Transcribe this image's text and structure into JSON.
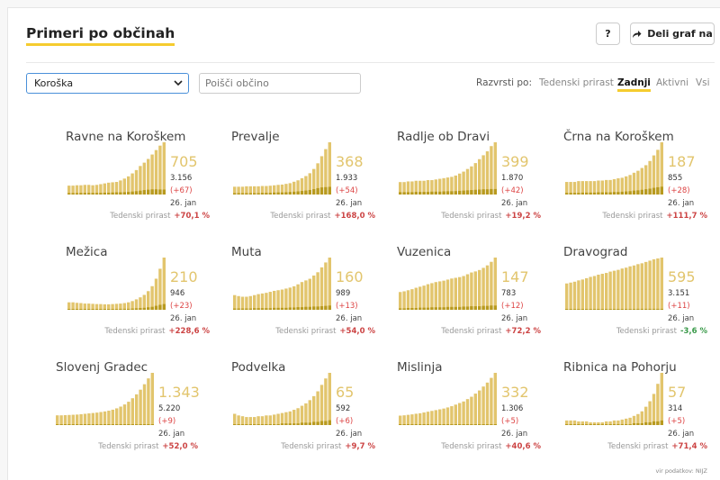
{
  "header": {
    "title": "Primeri po občinah",
    "help_label": "?",
    "share_label": "Deli graf na"
  },
  "filters": {
    "region_selected": "Koroška",
    "search_placeholder": "Poišči občino"
  },
  "sort": {
    "label": "Razvrsti po:",
    "options": [
      "Tedenski prirast",
      "Zadnji",
      "Aktivni",
      "Vsi"
    ],
    "active": "Zadnji"
  },
  "tiles": [
    {
      "name": "Ravne na Koroškem",
      "active": "705",
      "total": "3.156",
      "increase": "(+67)",
      "date": "26. jan",
      "growth_label": "Tedenski prirast",
      "growth": "+70,1 %",
      "dir": "up"
    },
    {
      "name": "Prevalje",
      "active": "368",
      "total": "1.933",
      "increase": "(+54)",
      "date": "26. jan",
      "growth_label": "Tedenski prirast",
      "growth": "+168,0 %",
      "dir": "up"
    },
    {
      "name": "Radlje ob Dravi",
      "active": "399",
      "total": "1.870",
      "increase": "(+42)",
      "date": "26. jan",
      "growth_label": "Tedenski prirast",
      "growth": "+19,2 %",
      "dir": "up"
    },
    {
      "name": "Črna na Koroškem",
      "active": "187",
      "total": "855",
      "increase": "(+28)",
      "date": "26. jan",
      "growth_label": "Tedenski prirast",
      "growth": "+111,7 %",
      "dir": "up"
    },
    {
      "name": "Mežica",
      "active": "210",
      "total": "946",
      "increase": "(+23)",
      "date": "26. jan",
      "growth_label": "Tedenski prirast",
      "growth": "+228,6 %",
      "dir": "up"
    },
    {
      "name": "Muta",
      "active": "160",
      "total": "989",
      "increase": "(+13)",
      "date": "26. jan",
      "growth_label": "Tedenski prirast",
      "growth": "+54,0 %",
      "dir": "up"
    },
    {
      "name": "Vuzenica",
      "active": "147",
      "total": "783",
      "increase": "(+12)",
      "date": "26. jan",
      "growth_label": "Tedenski prirast",
      "growth": "+72,2 %",
      "dir": "up"
    },
    {
      "name": "Dravograd",
      "active": "595",
      "total": "3.151",
      "increase": "(+11)",
      "date": "26. jan",
      "growth_label": "Tedenski prirast",
      "growth": "-3,6 %",
      "dir": "down"
    },
    {
      "name": "Slovenj Gradec",
      "active": "1.343",
      "total": "5.220",
      "increase": "(+9)",
      "date": "26. jan",
      "growth_label": "Tedenski prirast",
      "growth": "+52,0 %",
      "dir": "up"
    },
    {
      "name": "Podvelka",
      "active": "65",
      "total": "592",
      "increase": "(+6)",
      "date": "26. jan",
      "growth_label": "Tedenski prirast",
      "growth": "+9,7 %",
      "dir": "up"
    },
    {
      "name": "Mislinja",
      "active": "332",
      "total": "1.306",
      "increase": "(+5)",
      "date": "26. jan",
      "growth_label": "Tedenski prirast",
      "growth": "+40,6 %",
      "dir": "up"
    },
    {
      "name": "Ribnica na Pohorju",
      "active": "57",
      "total": "314",
      "increase": "(+5)",
      "date": "26. jan",
      "growth_label": "Tedenski prirast",
      "growth": "+71,4 %",
      "dir": "up"
    }
  ],
  "source": "vir podatkov: NIJZ",
  "colors": {
    "bar": "#e2c56d",
    "bar_dark": "#b89a1f",
    "accent": "#f5cc2f",
    "up": "#cc4444",
    "down": "#3a9a4a"
  },
  "chart_data": {
    "type": "bar",
    "series": [
      {
        "name": "Ravne na Koroškem",
        "values": [
          120,
          120,
          125,
          125,
          130,
          130,
          125,
          130,
          140,
          150,
          160,
          165,
          170,
          190,
          215,
          245,
          285,
          330,
          385,
          430,
          480,
          540,
          600,
          660,
          705
        ],
        "recent": [
          20,
          20,
          20,
          22,
          22,
          22,
          22,
          22,
          22,
          25,
          25,
          28,
          30,
          30,
          32,
          35,
          40,
          45,
          52,
          60,
          65,
          70,
          70,
          68,
          67
        ]
      },
      {
        "name": "Prevalje",
        "values": [
          55,
          55,
          55,
          58,
          58,
          58,
          58,
          60,
          60,
          62,
          65,
          68,
          70,
          75,
          80,
          90,
          100,
          115,
          130,
          150,
          180,
          220,
          270,
          320,
          368
        ],
        "recent": [
          10,
          10,
          10,
          10,
          10,
          10,
          10,
          12,
          12,
          12,
          14,
          15,
          15,
          16,
          18,
          20,
          22,
          25,
          28,
          32,
          38,
          45,
          50,
          52,
          54
        ]
      },
      {
        "name": "Radlje ob Dravi",
        "values": [
          95,
          95,
          100,
          100,
          105,
          105,
          105,
          110,
          110,
          115,
          120,
          125,
          130,
          135,
          145,
          160,
          175,
          195,
          215,
          240,
          270,
          300,
          330,
          370,
          399
        ],
        "recent": [
          18,
          18,
          18,
          18,
          20,
          20,
          20,
          20,
          22,
          22,
          22,
          24,
          25,
          25,
          26,
          28,
          30,
          32,
          34,
          36,
          38,
          40,
          40,
          42,
          42
        ]
      },
      {
        "name": "Črna na Koroškem",
        "values": [
          45,
          45,
          45,
          48,
          48,
          48,
          48,
          48,
          50,
          50,
          52,
          52,
          55,
          58,
          60,
          65,
          70,
          78,
          85,
          95,
          105,
          120,
          140,
          160,
          187
        ],
        "recent": [
          6,
          6,
          6,
          6,
          7,
          7,
          7,
          7,
          8,
          8,
          8,
          8,
          9,
          9,
          10,
          11,
          12,
          14,
          15,
          17,
          19,
          21,
          24,
          26,
          28
        ]
      },
      {
        "name": "Mežica",
        "values": [
          30,
          30,
          28,
          27,
          25,
          25,
          24,
          23,
          23,
          22,
          22,
          23,
          24,
          25,
          27,
          30,
          35,
          42,
          50,
          60,
          75,
          95,
          125,
          165,
          210
        ],
        "recent": [
          3,
          3,
          3,
          3,
          3,
          3,
          3,
          3,
          3,
          3,
          3,
          3,
          3,
          4,
          4,
          4,
          5,
          6,
          7,
          8,
          10,
          12,
          16,
          20,
          23
        ]
      },
      {
        "name": "Muta",
        "values": [
          45,
          42,
          40,
          40,
          42,
          45,
          48,
          50,
          52,
          55,
          58,
          60,
          62,
          65,
          68,
          72,
          78,
          85,
          90,
          95,
          105,
          115,
          130,
          145,
          160
        ],
        "recent": [
          4,
          4,
          4,
          4,
          4,
          5,
          5,
          5,
          5,
          5,
          6,
          6,
          6,
          6,
          7,
          7,
          8,
          8,
          9,
          9,
          10,
          10,
          11,
          12,
          13
        ]
      },
      {
        "name": "Vuzenica",
        "values": [
          50,
          52,
          55,
          58,
          62,
          65,
          68,
          72,
          75,
          78,
          80,
          82,
          85,
          88,
          90,
          92,
          95,
          100,
          105,
          108,
          112,
          118,
          125,
          135,
          147
        ],
        "recent": [
          4,
          4,
          5,
          5,
          5,
          6,
          6,
          6,
          7,
          7,
          7,
          7,
          8,
          8,
          8,
          8,
          9,
          9,
          10,
          10,
          10,
          11,
          11,
          12,
          12
        ]
      },
      {
        "name": "Dravograd",
        "values": [
          300,
          310,
          320,
          335,
          345,
          360,
          375,
          385,
          400,
          410,
          420,
          435,
          445,
          455,
          470,
          480,
          495,
          505,
          520,
          530,
          545,
          560,
          575,
          585,
          595
        ],
        "recent": [
          8,
          8,
          8,
          8,
          8,
          9,
          9,
          9,
          9,
          9,
          9,
          10,
          10,
          10,
          10,
          10,
          10,
          10,
          11,
          11,
          11,
          11,
          11,
          11,
          11
        ]
      },
      {
        "name": "Slovenj Gradec",
        "values": [
          250,
          250,
          255,
          260,
          265,
          270,
          280,
          290,
          300,
          310,
          320,
          335,
          350,
          370,
          395,
          430,
          475,
          530,
          600,
          690,
          790,
          910,
          1050,
          1200,
          1343
        ],
        "recent": [
          2,
          2,
          2,
          2,
          2,
          3,
          3,
          3,
          3,
          3,
          3,
          4,
          4,
          4,
          4,
          5,
          5,
          5,
          6,
          6,
          7,
          7,
          8,
          8,
          9
        ]
      },
      {
        "name": "Podvelka",
        "values": [
          14,
          12,
          11,
          10,
          10,
          10,
          11,
          11,
          12,
          12,
          13,
          14,
          15,
          16,
          17,
          19,
          21,
          24,
          27,
          31,
          36,
          42,
          50,
          58,
          65
        ],
        "recent": [
          1,
          1,
          1,
          1,
          1,
          1,
          1,
          1,
          1,
          1,
          1,
          1,
          2,
          2,
          2,
          2,
          2,
          3,
          3,
          3,
          4,
          4,
          5,
          5,
          6
        ]
      },
      {
        "name": "Mislinja",
        "values": [
          60,
          62,
          65,
          68,
          72,
          75,
          80,
          85,
          90,
          95,
          100,
          105,
          112,
          120,
          130,
          140,
          150,
          165,
          180,
          200,
          220,
          245,
          270,
          300,
          332
        ],
        "recent": [
          1,
          1,
          1,
          1,
          1,
          1,
          1,
          2,
          2,
          2,
          2,
          2,
          2,
          2,
          3,
          3,
          3,
          3,
          3,
          4,
          4,
          4,
          4,
          5,
          5
        ]
      },
      {
        "name": "Ribnica na Pohorju",
        "values": [
          5,
          5,
          5,
          4,
          4,
          4,
          3,
          3,
          3,
          3,
          4,
          4,
          5,
          5,
          6,
          7,
          8,
          10,
          12,
          15,
          20,
          26,
          34,
          45,
          57
        ],
        "recent": [
          1,
          1,
          1,
          1,
          1,
          1,
          1,
          1,
          1,
          1,
          1,
          1,
          1,
          1,
          1,
          1,
          1,
          2,
          2,
          2,
          3,
          3,
          4,
          4,
          5
        ]
      }
    ]
  }
}
